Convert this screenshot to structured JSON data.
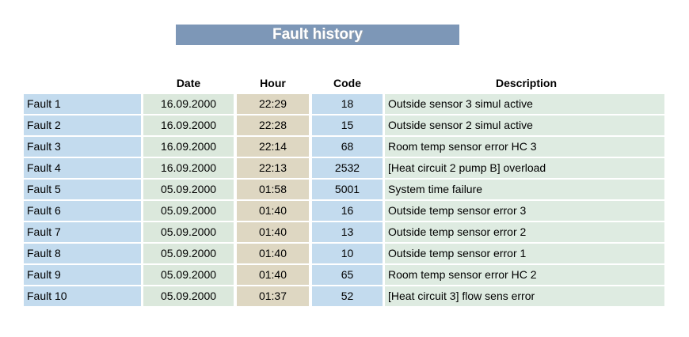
{
  "title": "Fault history",
  "colors": {
    "band": "#7D97B7",
    "fault_cell": "#C3DBEE",
    "date_cell": "#DBE8DC",
    "hour_cell": "#DED7C2",
    "code_cell": "#C3DBEE",
    "desc_cell": "#DEEBE1",
    "title_text": "#FFFFFF",
    "cell_text": "#000000"
  },
  "table": {
    "headers": {
      "fault": "",
      "date": "Date",
      "hour": "Hour",
      "code": "Code",
      "description": "Description"
    },
    "rows": [
      {
        "label": "Fault 1",
        "date": "16.09.2000",
        "hour": "22:29",
        "code": "18",
        "description": "Outside sensor 3 simul active"
      },
      {
        "label": "Fault 2",
        "date": "16.09.2000",
        "hour": "22:28",
        "code": "15",
        "description": "Outside sensor 2 simul active"
      },
      {
        "label": "Fault 3",
        "date": "16.09.2000",
        "hour": "22:14",
        "code": "68",
        "description": "Room temp sensor error HC 3"
      },
      {
        "label": "Fault 4",
        "date": "16.09.2000",
        "hour": "22:13",
        "code": "2532",
        "description": "[Heat circuit 2 pump B] overload"
      },
      {
        "label": "Fault 5",
        "date": "05.09.2000",
        "hour": "01:58",
        "code": "5001",
        "description": "System time failure"
      },
      {
        "label": "Fault 6",
        "date": "05.09.2000",
        "hour": "01:40",
        "code": "16",
        "description": "Outside temp sensor error 3"
      },
      {
        "label": "Fault 7",
        "date": "05.09.2000",
        "hour": "01:40",
        "code": "13",
        "description": "Outside temp sensor error 2"
      },
      {
        "label": "Fault 8",
        "date": "05.09.2000",
        "hour": "01:40",
        "code": "10",
        "description": "Outside temp sensor error 1"
      },
      {
        "label": "Fault 9",
        "date": "05.09.2000",
        "hour": "01:40",
        "code": "65",
        "description": "Room temp sensor error HC 2"
      },
      {
        "label": "Fault 10",
        "date": "05.09.2000",
        "hour": "01:37",
        "code": "52",
        "description": "[Heat circuit 3] flow sens error"
      }
    ]
  }
}
